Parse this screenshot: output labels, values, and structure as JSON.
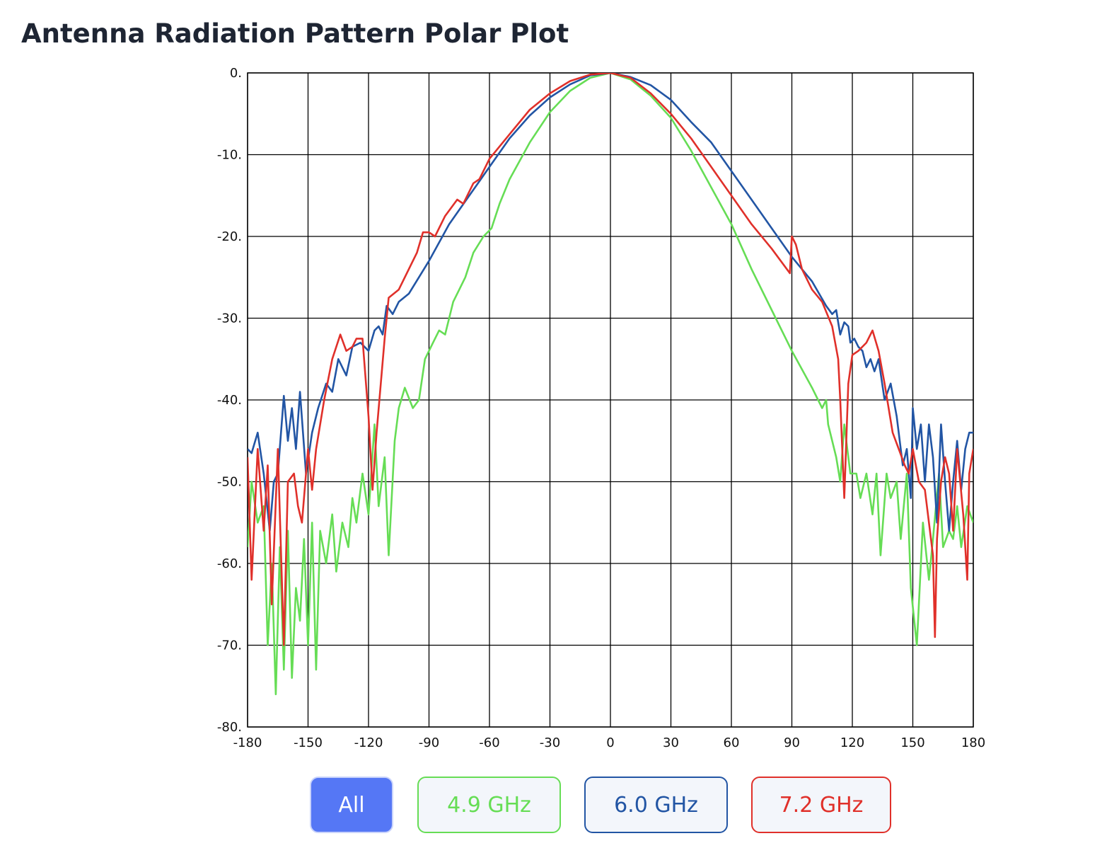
{
  "chart_data": {
    "type": "line",
    "title": "Antenna Radiation Pattern Polar Plot",
    "all_button_label": "All",
    "xlim": [
      -180,
      180
    ],
    "xticks": [
      -180,
      -150,
      -120,
      -90,
      -60,
      -30,
      0,
      30,
      60,
      90,
      120,
      150,
      180
    ],
    "ylim": [
      -80,
      0
    ],
    "yticks": [
      {
        "value": 0,
        "label": "0."
      },
      {
        "value": -10,
        "label": "-10."
      },
      {
        "value": -20,
        "label": "-20."
      },
      {
        "value": -30,
        "label": "-30."
      },
      {
        "value": -40,
        "label": "-40."
      },
      {
        "value": -50,
        "label": "-50."
      },
      {
        "value": -60,
        "label": "-60."
      },
      {
        "value": -70,
        "label": "-70."
      },
      {
        "value": -80,
        "label": "-80."
      }
    ],
    "grid": true,
    "series": [
      {
        "name": "4.9 GHz",
        "color": "#66dd55",
        "x": [
          -180,
          -178,
          -175,
          -172,
          -170,
          -168,
          -166,
          -164,
          -162,
          -160,
          -158,
          -156,
          -154,
          -152,
          -150,
          -148,
          -146,
          -144,
          -141,
          -138,
          -136,
          -133,
          -130,
          -128,
          -126,
          -123,
          -120,
          -117,
          -115,
          -112,
          -110,
          -107,
          -105,
          -102,
          -98,
          -95,
          -92,
          -88,
          -85,
          -82,
          -78,
          -75,
          -72,
          -68,
          -63,
          -59,
          -55,
          -50,
          -40,
          -30,
          -20,
          -10,
          0,
          10,
          20,
          30,
          40,
          50,
          60,
          70,
          80,
          90,
          100,
          105,
          107,
          108,
          112,
          114,
          116,
          119,
          122,
          124,
          127,
          130,
          132,
          134,
          137,
          139,
          142,
          144,
          147,
          149,
          152,
          155,
          158,
          160,
          163,
          165,
          168,
          170,
          172,
          174,
          177,
          180
        ],
        "values": [
          -58,
          -50,
          -55,
          -53,
          -70,
          -60,
          -76,
          -58,
          -73,
          -56,
          -74,
          -63,
          -67,
          -57,
          -70,
          -55,
          -73,
          -56,
          -60,
          -54,
          -61,
          -55,
          -58,
          -52,
          -55,
          -49,
          -54,
          -43,
          -53,
          -47,
          -59,
          -45,
          -41,
          -38.5,
          -41,
          -40,
          -35,
          -33,
          -31.5,
          -32,
          -28,
          -26.5,
          -25,
          -22,
          -20,
          -19,
          -16,
          -13,
          -8.5,
          -4.8,
          -2.2,
          -0.6,
          0,
          -0.8,
          -2.8,
          -5.5,
          -9.5,
          -14,
          -18.5,
          -24,
          -29,
          -34,
          -38.5,
          -41,
          -40,
          -43,
          -47,
          -50,
          -43,
          -49,
          -49,
          -52,
          -49,
          -54,
          -49,
          -59,
          -49,
          -52,
          -50,
          -57,
          -49,
          -63,
          -70,
          -55,
          -62,
          -57,
          -49,
          -58,
          -56,
          -57,
          -53,
          -58,
          -53,
          -55
        ]
      },
      {
        "name": "6.0 GHz",
        "color": "#2255a4",
        "x": [
          -180,
          -178,
          -175,
          -172,
          -169,
          -167,
          -165,
          -162,
          -160,
          -158,
          -156,
          -154,
          -151,
          -148,
          -145,
          -141,
          -138,
          -135,
          -131,
          -128,
          -124,
          -120,
          -117,
          -115,
          -113,
          -111,
          -108,
          -105,
          -100,
          -90,
          -80,
          -70,
          -60,
          -50,
          -40,
          -30,
          -20,
          -10,
          0,
          10,
          20,
          30,
          40,
          50,
          60,
          70,
          80,
          90,
          100,
          107,
          110,
          112,
          113,
          114,
          116,
          118,
          119,
          121,
          123,
          125,
          127,
          129,
          131,
          133,
          136,
          139,
          142,
          145,
          147,
          149,
          150,
          152,
          154,
          156,
          158,
          160,
          162,
          164,
          166,
          168,
          170,
          172,
          174,
          176,
          178,
          180
        ],
        "values": [
          -46,
          -46.5,
          -44,
          -49,
          -56,
          -50,
          -49,
          -39.5,
          -45,
          -41,
          -46,
          -39,
          -49,
          -44,
          -41,
          -38,
          -39,
          -35,
          -37,
          -33.5,
          -33,
          -34,
          -31.5,
          -31,
          -32,
          -28.5,
          -29.5,
          -28,
          -27,
          -23,
          -18.5,
          -15,
          -11.5,
          -8,
          -5.2,
          -3,
          -1.4,
          -0.3,
          0,
          -0.5,
          -1.5,
          -3.3,
          -6,
          -8.5,
          -12,
          -15.5,
          -19,
          -22.5,
          -25.5,
          -28.5,
          -29.5,
          -29,
          -30.5,
          -32,
          -30.5,
          -31,
          -33,
          -32.5,
          -33.5,
          -34,
          -36,
          -35,
          -36.5,
          -35,
          -40,
          -38,
          -42,
          -48,
          -46,
          -52,
          -41,
          -46,
          -43,
          -50,
          -43,
          -47,
          -55,
          -43,
          -50,
          -56,
          -50,
          -45,
          -51,
          -46,
          -44,
          -44
        ]
      },
      {
        "name": "7.2 GHz",
        "color": "#e0302a",
        "x": [
          -180,
          -178,
          -175,
          -172,
          -170,
          -168,
          -165,
          -162,
          -160,
          -157,
          -155,
          -153,
          -150,
          -148,
          -146,
          -142,
          -138,
          -134,
          -131,
          -128,
          -126,
          -123,
          -120,
          -118,
          -116,
          -112,
          -110,
          -105,
          -100,
          -96,
          -93,
          -90,
          -87,
          -82,
          -76,
          -73,
          -68,
          -65,
          -60,
          -50,
          -40,
          -30,
          -20,
          -10,
          0,
          10,
          20,
          30,
          40,
          50,
          60,
          70,
          80,
          89,
          90,
          92,
          95,
          100,
          105,
          110,
          113,
          114,
          116,
          118,
          120,
          123,
          127,
          130,
          133,
          136,
          140,
          143,
          146,
          148,
          150,
          153,
          156,
          160,
          161,
          162,
          164,
          166,
          168,
          170,
          172,
          175,
          177,
          178,
          180
        ],
        "values": [
          -47,
          -62,
          -46,
          -56,
          -48,
          -65,
          -46,
          -70,
          -50,
          -49,
          -53,
          -55,
          -46,
          -51,
          -46,
          -40,
          -35,
          -32,
          -34,
          -33.5,
          -32.5,
          -32.5,
          -42,
          -51,
          -44,
          -32.5,
          -27.5,
          -26.5,
          -24,
          -22,
          -19.5,
          -19.5,
          -20,
          -17.5,
          -15.5,
          -16,
          -13.5,
          -13,
          -10.5,
          -7.5,
          -4.5,
          -2.5,
          -1,
          -0.2,
          0,
          -0.6,
          -2.5,
          -5,
          -8,
          -11.5,
          -15,
          -18.5,
          -21.5,
          -24.5,
          -20,
          -21,
          -24,
          -26.5,
          -28,
          -31,
          -35,
          -40,
          -52,
          -38,
          -34.5,
          -34,
          -33,
          -31.5,
          -34,
          -38,
          -44,
          -46,
          -48,
          -49,
          -46,
          -50,
          -51,
          -59,
          -69,
          -57,
          -50,
          -47,
          -49,
          -56,
          -46,
          -54,
          -62,
          -49,
          -46
        ]
      }
    ]
  }
}
